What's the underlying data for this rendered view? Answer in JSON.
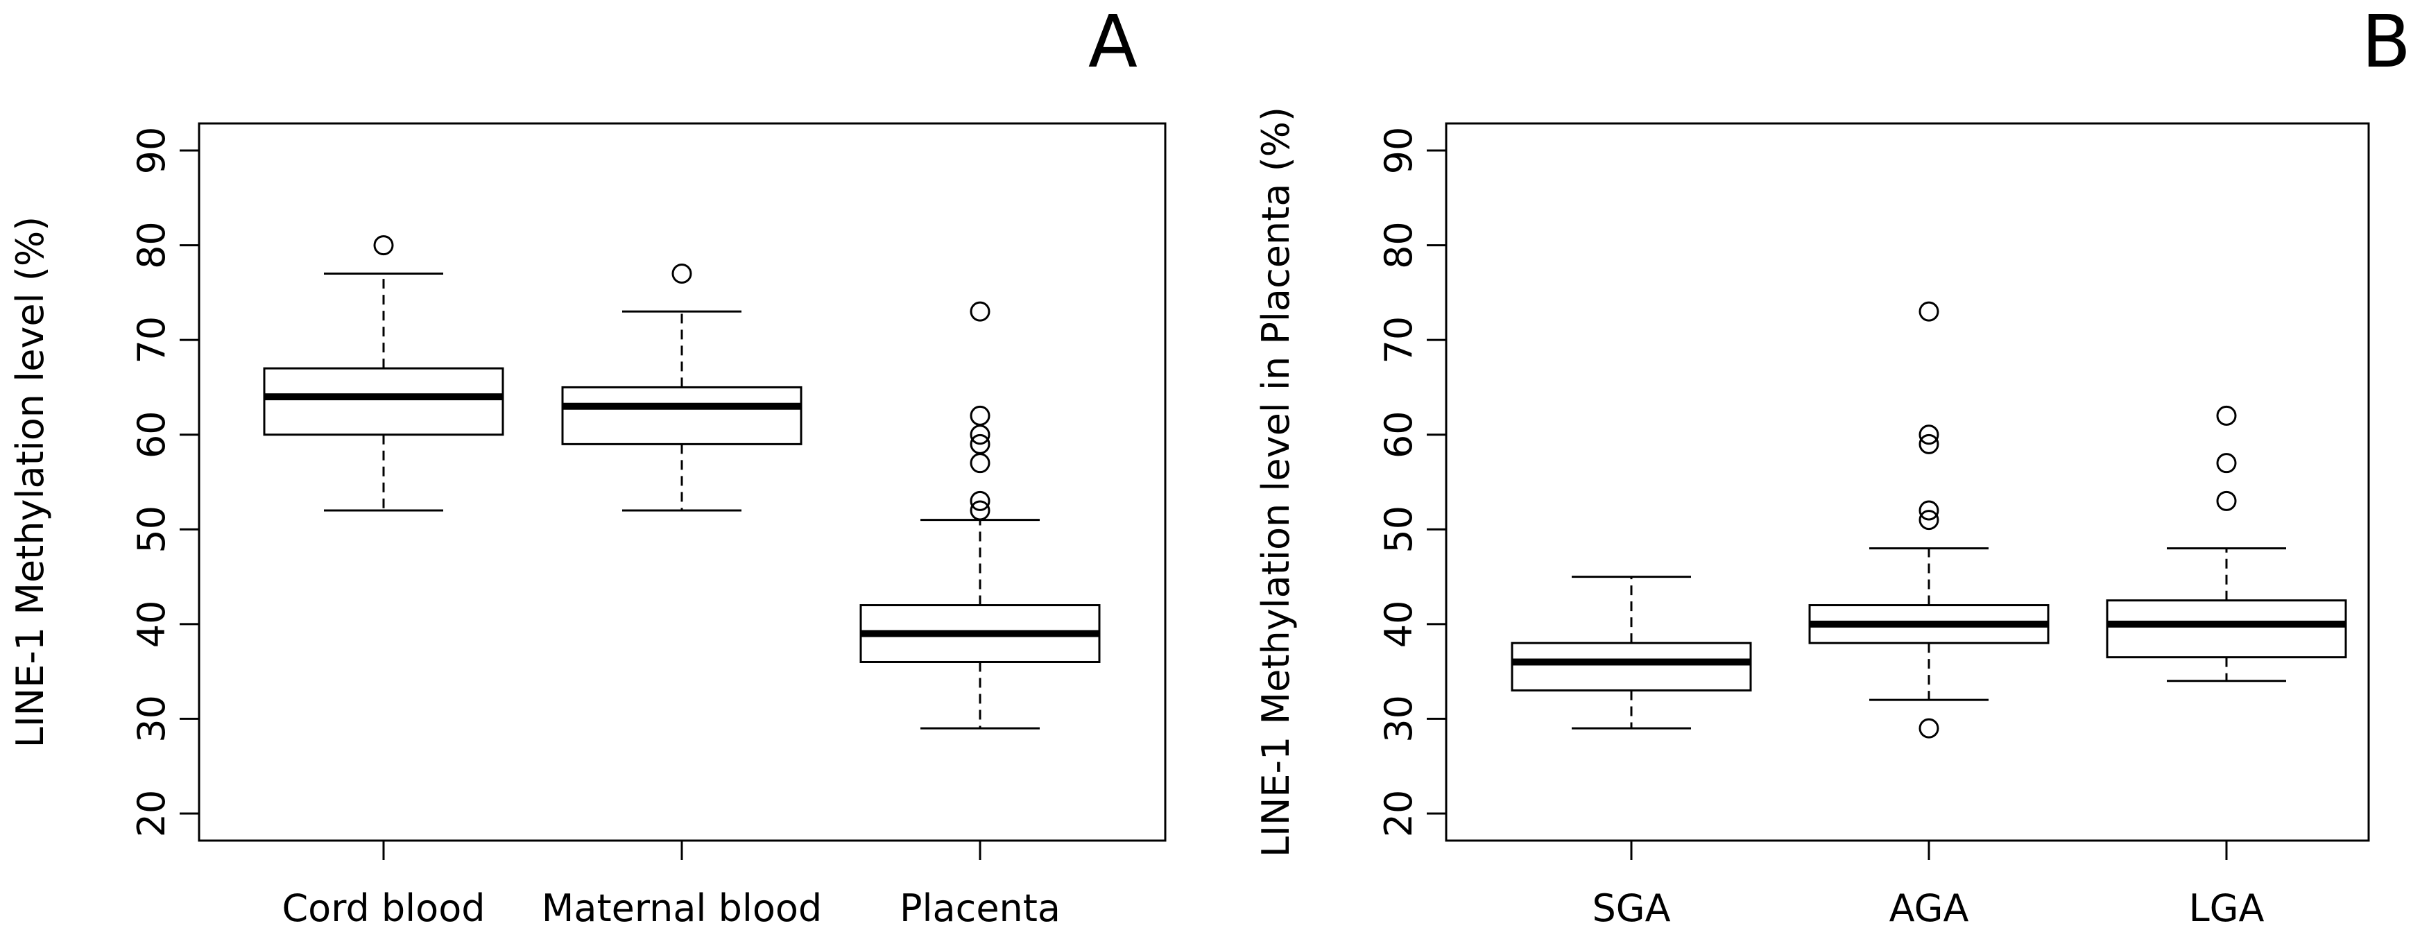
{
  "chart_data": [
    {
      "type": "boxplot",
      "panel_label": "A",
      "ylabel": "LINE-1 Methylation level (%)",
      "xlabel": "",
      "ylim": [
        20,
        90
      ],
      "yticks": [
        "20",
        "30",
        "40",
        "50",
        "60",
        "70",
        "80",
        "90"
      ],
      "grid": false,
      "categories": [
        "Cord blood",
        "Maternal blood",
        "Placenta"
      ],
      "boxes": [
        {
          "name": "Cord blood",
          "whisker_low": 52,
          "q1": 60,
          "median": 64,
          "q3": 67,
          "whisker_high": 77,
          "outliers": [
            80
          ]
        },
        {
          "name": "Maternal blood",
          "whisker_low": 52,
          "q1": 59,
          "median": 63,
          "q3": 65,
          "whisker_high": 73,
          "outliers": [
            77
          ]
        },
        {
          "name": "Placenta",
          "whisker_low": 29,
          "q1": 36,
          "median": 39,
          "q3": 42,
          "whisker_high": 51,
          "outliers": [
            52,
            53,
            57,
            59,
            60,
            62,
            73
          ]
        }
      ]
    },
    {
      "type": "boxplot",
      "panel_label": "B",
      "ylabel": "LINE-1 Methylation level in Placenta (%)",
      "xlabel": "",
      "ylim": [
        20,
        90
      ],
      "yticks": [
        "20",
        "30",
        "40",
        "50",
        "60",
        "70",
        "80",
        "90"
      ],
      "grid": false,
      "categories": [
        "SGA",
        "AGA",
        "LGA"
      ],
      "boxes": [
        {
          "name": "SGA",
          "whisker_low": 29,
          "q1": 33,
          "median": 36,
          "q3": 38,
          "whisker_high": 45,
          "outliers": []
        },
        {
          "name": "AGA",
          "whisker_low": 32,
          "q1": 38,
          "median": 40,
          "q3": 42,
          "whisker_high": 48,
          "outliers": [
            29,
            51,
            52,
            59,
            60,
            73
          ]
        },
        {
          "name": "LGA",
          "whisker_low": 34,
          "q1": 36.5,
          "median": 40,
          "q3": 42.5,
          "whisker_high": 48,
          "outliers": [
            53,
            57,
            62
          ]
        }
      ]
    }
  ]
}
